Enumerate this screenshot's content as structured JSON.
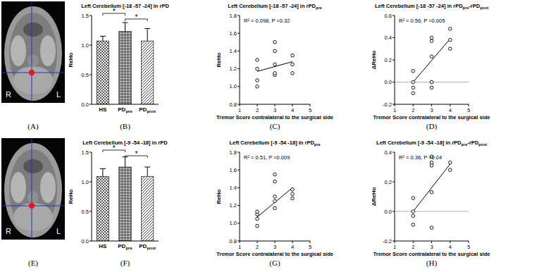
{
  "chart_data": [
    {
      "type": "image",
      "panel_label": "(A)",
      "labels": [
        "R",
        "L"
      ]
    },
    {
      "type": "bar",
      "panel_label": "(B)",
      "title": "Left Cerebellum [-18 -57 -24] in rPD",
      "y_label": "ReHo",
      "categories": [
        "HS",
        "PDpre",
        "PDpost"
      ],
      "values": [
        1.07,
        1.23,
        1.07
      ],
      "errors": [
        0.08,
        0.15,
        0.21
      ],
      "colors": [
        "#555555",
        "#333333",
        "#444444"
      ],
      "ylim": [
        0,
        1.5
      ],
      "yticks": [
        {
          "value": 0,
          "label": "0.0"
        },
        {
          "value": 0.5,
          "label": "0.5"
        },
        {
          "value": 1,
          "label": "1.0"
        },
        {
          "value": 1.5,
          "label": "1.5"
        }
      ],
      "significance": [
        {
          "between": [
            0,
            1
          ],
          "label": "*"
        },
        {
          "between": [
            1,
            2
          ],
          "label": "*"
        }
      ]
    },
    {
      "type": "scatter",
      "panel_label": "(C)",
      "title": "Left Cerebellum [-18 -57 -24] in rPDpre",
      "x_label": "Tremor Score contralateral to the surgical side",
      "y_label": "ReHo",
      "annotation": "R² = 0.098, P =0.32",
      "marker": "circle-open",
      "color": "#000000",
      "x": [
        2,
        2,
        2,
        2,
        3,
        3,
        3,
        3,
        3,
        4,
        4,
        4
      ],
      "values": [
        1.0,
        1.07,
        1.2,
        1.3,
        1.13,
        1.15,
        1.25,
        1.4,
        1.5,
        1.15,
        1.25,
        1.35
      ],
      "fit": {
        "x": [
          2,
          4
        ],
        "values": [
          1.17,
          1.28
        ]
      },
      "xlim": [
        1,
        5
      ],
      "xticks": [
        1,
        2,
        3,
        4,
        5
      ],
      "ylim": [
        0.8,
        1.8
      ],
      "yticks": [
        {
          "value": 0.8,
          "label": "0.8"
        },
        {
          "value": 1.0,
          "label": "1.0"
        },
        {
          "value": 1.2,
          "label": "1.2"
        },
        {
          "value": 1.4,
          "label": "1.4"
        },
        {
          "value": 1.6,
          "label": "1.6"
        },
        {
          "value": 1.8,
          "label": "1.8"
        }
      ]
    },
    {
      "type": "scatter",
      "panel_label": "(D)",
      "title": "Left Cerebellum [-18 -57 -24] in rPDpre-rPDpost",
      "x_label": "Tremor Score contralateral to the surgical side",
      "y_label": "ΔReHo",
      "annotation": "R² = 0.56, P =0.005",
      "marker": "circle-open",
      "color": "#000000",
      "x": [
        2,
        2,
        2,
        2,
        3,
        3,
        3,
        3,
        3,
        4,
        4,
        4
      ],
      "values": [
        0.1,
        0.0,
        -0.05,
        -0.1,
        0.4,
        0.37,
        0.23,
        0.0,
        -0.05,
        0.48,
        0.38,
        0.3
      ],
      "fit": {
        "x": [
          2,
          4
        ],
        "values": [
          0.0,
          0.39
        ]
      },
      "reference_line": 0,
      "xlim": [
        1,
        5
      ],
      "xticks": [
        1,
        2,
        3,
        4,
        5
      ],
      "ylim": [
        -0.2,
        0.6
      ],
      "yticks": [
        {
          "value": -0.2,
          "label": "-0.2"
        },
        {
          "value": 0,
          "label": "0.0"
        },
        {
          "value": 0.2,
          "label": "0.2"
        },
        {
          "value": 0.4,
          "label": "0.4"
        },
        {
          "value": 0.6,
          "label": "0.6"
        }
      ]
    },
    {
      "type": "image",
      "panel_label": "(E)",
      "labels": [
        "R",
        "L"
      ]
    },
    {
      "type": "bar",
      "panel_label": "(F)",
      "title": "Left Cerebellum [-9 -54 -18] in rPD",
      "y_label": "ReHo",
      "categories": [
        "HS",
        "PDpre",
        "PDpost"
      ],
      "values": [
        1.09,
        1.25,
        1.09
      ],
      "errors": [
        0.13,
        0.17,
        0.16
      ],
      "colors": [
        "#555555",
        "#333333",
        "#444444"
      ],
      "ylim": [
        0,
        1.5
      ],
      "yticks": [
        {
          "value": 0,
          "label": "0.0"
        },
        {
          "value": 0.5,
          "label": "0.5"
        },
        {
          "value": 1,
          "label": "1.0"
        },
        {
          "value": 1.5,
          "label": "1.5"
        }
      ],
      "significance": [
        {
          "between": [
            0,
            1
          ],
          "label": "*"
        },
        {
          "between": [
            1,
            2
          ],
          "label": "*"
        }
      ]
    },
    {
      "type": "scatter",
      "panel_label": "(G)",
      "title": "Left Cerebellum [-9 -54 -18] in rPDpre",
      "x_label": "Tremor Score contralateral to the surgical side",
      "y_label": "ReHo",
      "annotation": "R² = 0.51, P =0.009",
      "marker": "circle-open",
      "color": "#000000",
      "x": [
        2,
        2,
        2,
        2,
        3,
        3,
        3,
        3,
        3,
        4,
        4,
        4
      ],
      "values": [
        0.97,
        1.05,
        1.1,
        1.13,
        1.17,
        1.25,
        1.3,
        1.47,
        1.55,
        1.28,
        1.33,
        1.38
      ],
      "fit": {
        "x": [
          2,
          4
        ],
        "values": [
          1.07,
          1.4
        ]
      },
      "xlim": [
        1,
        5
      ],
      "xticks": [
        1,
        2,
        3,
        4,
        5
      ],
      "ylim": [
        0.8,
        1.8
      ],
      "yticks": [
        {
          "value": 0.8,
          "label": "0.8"
        },
        {
          "value": 1.0,
          "label": "1.0"
        },
        {
          "value": 1.2,
          "label": "1.2"
        },
        {
          "value": 1.4,
          "label": "1.4"
        },
        {
          "value": 1.6,
          "label": "1.6"
        },
        {
          "value": 1.8,
          "label": "1.8"
        }
      ]
    },
    {
      "type": "scatter",
      "panel_label": "(H)",
      "title": "Left Cerebellum [-9 -54 -18] in rPDpre-rPDpost",
      "x_label": "Tremor Score contralateral to the surgical side",
      "y_label": "ΔReHo",
      "annotation": "R² = 0.36, P =0.04",
      "marker": "circle-open",
      "color": "#000000",
      "x": [
        2,
        2,
        2,
        2,
        3,
        3,
        3,
        3,
        3,
        4,
        4
      ],
      "values": [
        0.09,
        0.0,
        -0.03,
        -0.09,
        0.37,
        0.33,
        0.31,
        0.13,
        -0.11,
        0.33,
        0.28
      ],
      "fit": {
        "x": [
          2,
          4
        ],
        "values": [
          0.0,
          0.32
        ]
      },
      "reference_line": 0,
      "xlim": [
        1,
        5
      ],
      "xticks": [
        1,
        2,
        3,
        4,
        5
      ],
      "ylim": [
        -0.2,
        0.4
      ],
      "yticks": [
        {
          "value": -0.2,
          "label": "-0.2"
        },
        {
          "value": 0,
          "label": "0.0"
        },
        {
          "value": 0.2,
          "label": "0.2"
        },
        {
          "value": 0.4,
          "label": "0.4"
        }
      ]
    }
  ]
}
